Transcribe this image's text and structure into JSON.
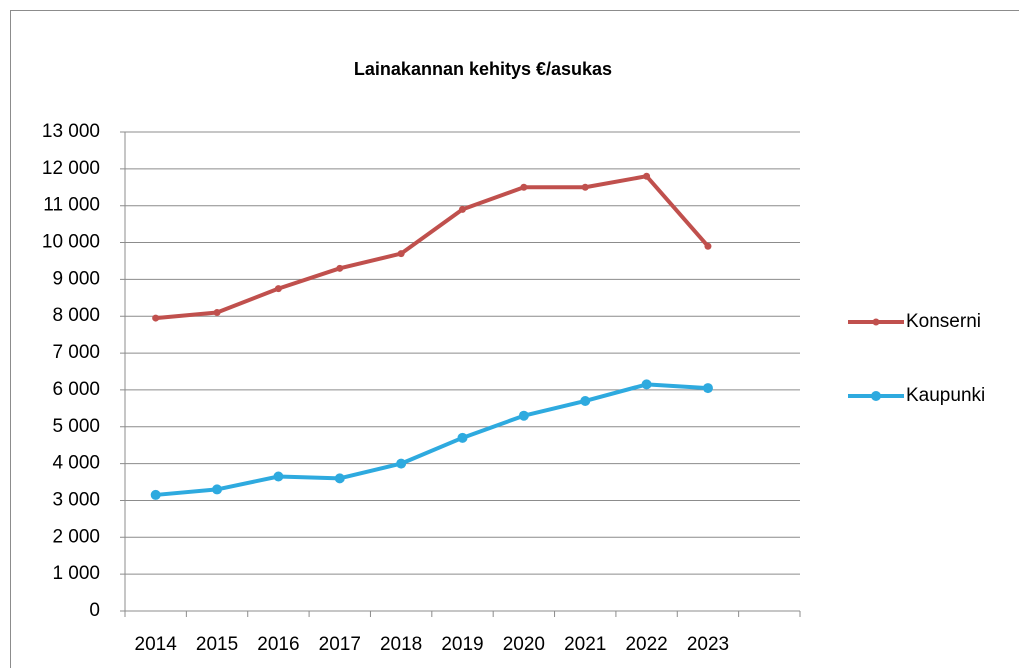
{
  "chart_data": {
    "type": "line",
    "title": "Lainakannan kehitys €/asukas",
    "categories": [
      "2014",
      "2015",
      "2016",
      "2017",
      "2018",
      "2019",
      "2020",
      "2021",
      "2022",
      "2023",
      null
    ],
    "series": [
      {
        "name": "Konserni",
        "color": "#c0504d",
        "values": [
          7950,
          8100,
          8750,
          9300,
          9700,
          10900,
          11500,
          11500,
          11800,
          9900,
          null
        ]
      },
      {
        "name": "Kaupunki",
        "color": "#2eaadf",
        "values": [
          3150,
          3300,
          3650,
          3600,
          4000,
          4700,
          5300,
          5700,
          6150,
          6050,
          null
        ]
      }
    ],
    "ylim": [
      0,
      13000
    ],
    "yticks": [
      0,
      {
        "value": 1000,
        "label": "1 000"
      },
      {
        "value": 2000,
        "label": "2 000"
      },
      {
        "value": 3000,
        "label": "3 000"
      },
      {
        "value": 4000,
        "label": "4 000"
      },
      {
        "value": 5000,
        "label": "5 000"
      },
      {
        "value": 6000,
        "label": "6 000"
      },
      {
        "value": 7000,
        "label": "7 000"
      },
      {
        "value": 8000,
        "label": "8 000"
      },
      {
        "value": 9000,
        "label": "9 000"
      },
      {
        "value": 10000,
        "label": "10 000"
      },
      {
        "value": 11000,
        "label": "11 000"
      },
      {
        "value": 12000,
        "label": "12 000"
      },
      {
        "value": 13000,
        "label": "13 000"
      }
    ],
    "grid": true,
    "legend": "right"
  }
}
